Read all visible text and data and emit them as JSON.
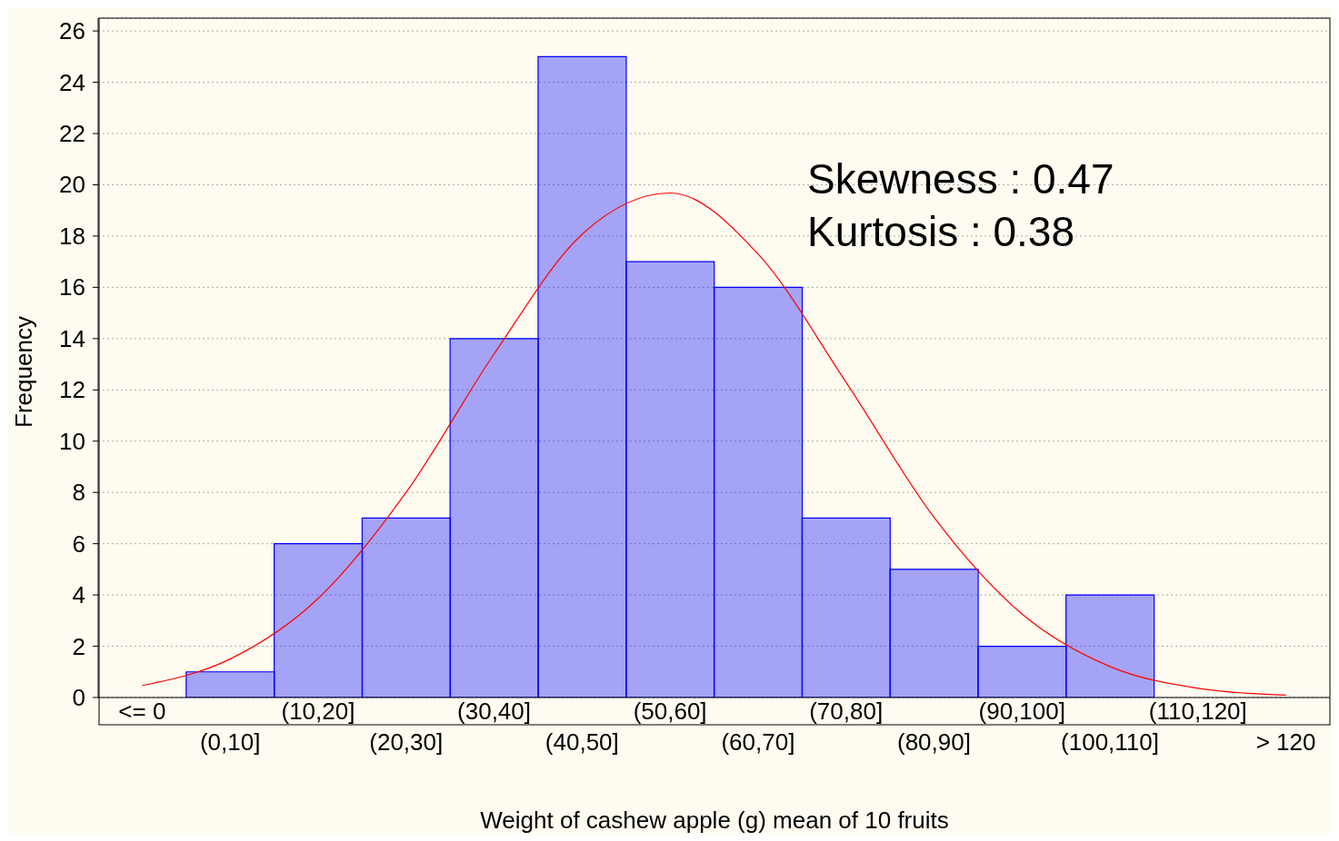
{
  "chart_data": {
    "type": "bar",
    "xlabel": "Weight of cashew apple (g) mean of 10 fruits",
    "ylabel": "Frequency",
    "categories": [
      "<= 0",
      "(0,10]",
      "(10,20]",
      "(20,30]",
      "(30,40]",
      "(40,50]",
      "(50,60]",
      "(60,70]",
      "(70,80]",
      "(80,90]",
      "(90,100]",
      "(100,110]",
      "(110,120]",
      "> 120"
    ],
    "series": [
      {
        "color": "#0000ff",
        "values": [
          0,
          1,
          6,
          7,
          14,
          25,
          17,
          16,
          7,
          5,
          2,
          4,
          0,
          0
        ]
      },
      {
        "type": "line",
        "color": "#ff0000",
        "values": [
          0.47,
          1.5,
          3.86,
          8.0,
          13.4,
          18.07,
          19.68,
          17.3,
          12.3,
          7.03,
          3.26,
          1.21,
          0.36,
          0.09
        ]
      }
    ],
    "ylim": [
      0,
      26.5
    ],
    "yticks": [
      0,
      2,
      4,
      6,
      8,
      10,
      12,
      14,
      16,
      18,
      20,
      22,
      24,
      26
    ],
    "grid": "y",
    "marker": "none",
    "annotations": [
      "Skewness : 0.47",
      "Kurtosis : 0.38"
    ]
  }
}
